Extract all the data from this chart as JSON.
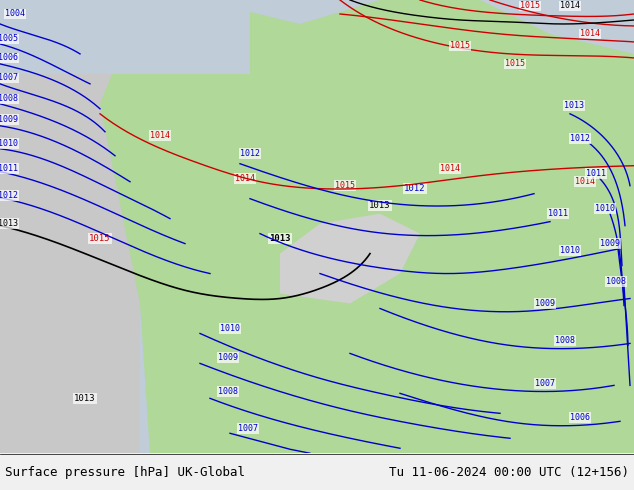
{
  "title_left": "Surface pressure [hPa] UK-Global",
  "title_right": "Tu 11-06-2024 00:00 UTC (12+156)",
  "footer_bg": "#e8e8e8",
  "footer_text_color": "#000000",
  "footer_fontsize": 9,
  "bg_sea_color": "#c8d8e8",
  "bg_land_color": "#90c878",
  "bg_highland_color": "#d8d8d8",
  "isobar_blue_color": "#0000cc",
  "isobar_red_color": "#cc0000",
  "isobar_black_color": "#000000",
  "label_fontsize": 7,
  "fig_width": 6.34,
  "fig_height": 4.9,
  "dpi": 100
}
